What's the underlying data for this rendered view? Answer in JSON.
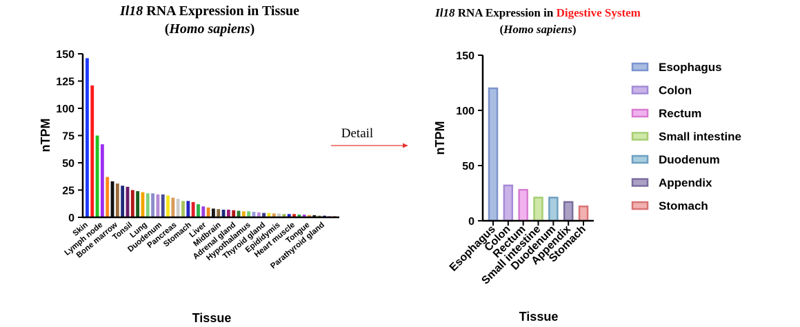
{
  "colors": {
    "accent_red": "#ff1a1a",
    "arrow": "#e53935",
    "axis": "#000000",
    "text": "#000000"
  },
  "arrow_label": "Detail",
  "chart_data": [
    {
      "id": "tissue",
      "type": "bar",
      "title_line1_italic": "Il18",
      "title_line1_rest": " RNA Expression in Tissue",
      "title_line2_open": "(",
      "title_line2_italic": "Homo sapiens",
      "title_line2_close": ")",
      "xlabel": "Tissue",
      "ylabel": "nTPM",
      "ylim": [
        0,
        150
      ],
      "yticks": [
        0,
        25,
        50,
        75,
        100,
        125,
        150
      ],
      "tick_labels": [
        "Skin",
        "Lymph node",
        "Bone marrow",
        "Tonsil",
        "Lung",
        "Duodenum",
        "Pancreas",
        "Stomach",
        "Liver",
        "Midbrain",
        "Adrenal gland",
        "Hypothalamus",
        "Thyroid gland",
        "Epididymis",
        "Heart muscle",
        "Tongue",
        "Parathyroid gland"
      ],
      "bars": [
        {
          "value": 146,
          "color": "#1f3cff"
        },
        {
          "value": 121,
          "color": "#ff1a1a"
        },
        {
          "value": 75,
          "color": "#22c322"
        },
        {
          "value": 67,
          "color": "#9a2ef0"
        },
        {
          "value": 37,
          "color": "#ff8a1f"
        },
        {
          "value": 33,
          "color": "#111111"
        },
        {
          "value": 31,
          "color": "#9b6b3b"
        },
        {
          "value": 29,
          "color": "#1e2a78"
        },
        {
          "value": 28,
          "color": "#6a1b6a"
        },
        {
          "value": 25,
          "color": "#b01717"
        },
        {
          "value": 24,
          "color": "#1b5e20"
        },
        {
          "value": 23,
          "color": "#f4a300"
        },
        {
          "value": 22,
          "color": "#7fd37f"
        },
        {
          "value": 22,
          "color": "#8c8ccc"
        },
        {
          "value": 21,
          "color": "#b58ad6"
        },
        {
          "value": 21,
          "color": "#4a4a9a"
        },
        {
          "value": 20,
          "color": "#f7e51c"
        },
        {
          "value": 18,
          "color": "#d89c5a"
        },
        {
          "value": 17,
          "color": "#cccccc"
        },
        {
          "value": 15,
          "color": "#a7c45c"
        },
        {
          "value": 15,
          "color": "#2626c4"
        },
        {
          "value": 14,
          "color": "#e0202c"
        },
        {
          "value": 12,
          "color": "#28b34a"
        },
        {
          "value": 10,
          "color": "#9b3fe0"
        },
        {
          "value": 9,
          "color": "#f08a1a"
        },
        {
          "value": 8,
          "color": "#1a1a1a"
        },
        {
          "value": 7.5,
          "color": "#8a6a3a"
        },
        {
          "value": 7,
          "color": "#1e2a80"
        },
        {
          "value": 7,
          "color": "#a01a7a"
        },
        {
          "value": 6.5,
          "color": "#b01717"
        },
        {
          "value": 6,
          "color": "#2e7d32"
        },
        {
          "value": 5.5,
          "color": "#f0b010"
        },
        {
          "value": 5.5,
          "color": "#6fd06f"
        },
        {
          "value": 5,
          "color": "#9a9ae0"
        },
        {
          "value": 4.5,
          "color": "#c08be0"
        },
        {
          "value": 4,
          "color": "#3a3a8a"
        },
        {
          "value": 4,
          "color": "#f2e11a"
        },
        {
          "value": 3.5,
          "color": "#e09a40"
        },
        {
          "value": 3.5,
          "color": "#c8c8c8"
        },
        {
          "value": 3,
          "color": "#9ab84a"
        },
        {
          "value": 3,
          "color": "#2020d0"
        },
        {
          "value": 3,
          "color": "#e02020"
        },
        {
          "value": 2.5,
          "color": "#20b040"
        },
        {
          "value": 2.5,
          "color": "#a040e0"
        },
        {
          "value": 2,
          "color": "#f09020"
        },
        {
          "value": 2,
          "color": "#202020"
        },
        {
          "value": 1.5,
          "color": "#8a6a3a"
        },
        {
          "value": 1.5,
          "color": "#1e2a80"
        },
        {
          "value": 1,
          "color": "#a01a7a"
        },
        {
          "value": 1,
          "color": "#b01717"
        }
      ]
    },
    {
      "id": "digestive",
      "type": "bar",
      "title_line1_italic": "Il18",
      "title_line1_rest": " RNA Expression in ",
      "title_line1_highlight": "Digestive System",
      "title_line2_open": "(",
      "title_line2_italic": "Homo sapiens",
      "title_line2_close": ")",
      "xlabel": "Tissue",
      "ylabel": "nTPM",
      "ylim": [
        0,
        150
      ],
      "yticks": [
        0,
        50,
        100,
        150
      ],
      "categories": [
        "Esophagus",
        "Colon",
        "Rectum",
        "Small intestine",
        "Duodenum",
        "Appendix",
        "Stomach"
      ],
      "values": [
        120,
        32,
        28,
        21,
        21,
        17,
        13
      ],
      "fills": [
        "#a9bde3",
        "#c9b3e8",
        "#f1b3ef",
        "#cfe7a7",
        "#a8cde0",
        "#a9a0c4",
        "#f2b0b0"
      ],
      "strokes": [
        "#7b93cc",
        "#a58ad6",
        "#d87ad2",
        "#a6ce72",
        "#6f9fbf",
        "#7b6d9e",
        "#d97474"
      ],
      "legend": [
        "Esophagus",
        "Colon",
        "Rectum",
        "Small intestine",
        "Duodenum",
        "Appendix",
        "Stomach"
      ],
      "legend_position": "right"
    }
  ]
}
